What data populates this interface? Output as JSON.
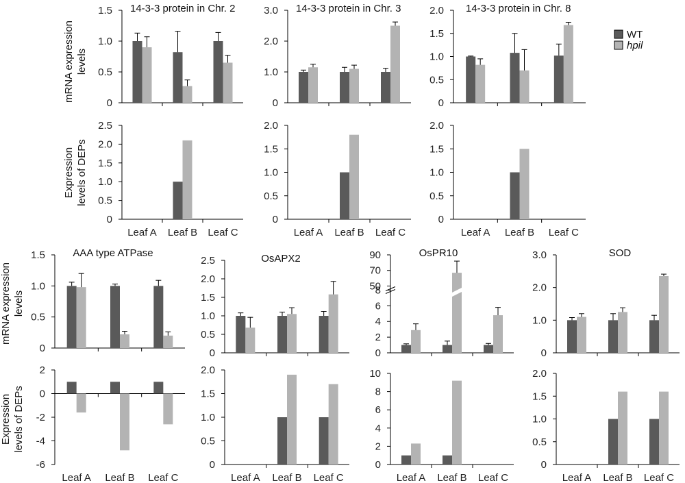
{
  "colors": {
    "WT": "#5a5a5a",
    "hpil": "#b3b3b3",
    "axis": "#000000"
  },
  "legend": {
    "items": [
      {
        "key": "WT",
        "label": "WT"
      },
      {
        "key": "hpil",
        "label": "hpil"
      }
    ]
  },
  "ylabels": {
    "mrna": [
      "mRNA expression",
      "levels"
    ],
    "deps": [
      "Expression",
      "levels of DEPs"
    ]
  },
  "chart_data": [
    {
      "id": "p1",
      "type": "bar",
      "title": "14-3-3 protein in Chr. 2",
      "categories": [
        "Leaf A",
        "Leaf B",
        "Leaf C"
      ],
      "show_categories": false,
      "ylim": [
        0,
        1.5
      ],
      "yticks": [
        0,
        0.5,
        1.0,
        1.5
      ],
      "ytick_labels": [
        "0",
        "0.5",
        "1.0",
        "1.5"
      ],
      "series": [
        {
          "name": "WT",
          "values": [
            1.0,
            0.82,
            1.0
          ],
          "errors": [
            0.13,
            0.34,
            0.14
          ]
        },
        {
          "name": "hpil",
          "values": [
            0.9,
            0.27,
            0.65
          ],
          "errors": [
            0.17,
            0.1,
            0.12
          ]
        }
      ]
    },
    {
      "id": "p2",
      "type": "bar",
      "title": "14-3-3 protein in Chr. 3",
      "categories": [
        "Leaf A",
        "Leaf B",
        "Leaf C"
      ],
      "show_categories": false,
      "ylim": [
        0,
        3.0
      ],
      "yticks": [
        0,
        1.0,
        2.0,
        3.0
      ],
      "ytick_labels": [
        "0",
        "1.0",
        "2.0",
        "3.0"
      ],
      "series": [
        {
          "name": "WT",
          "values": [
            1.0,
            1.0,
            1.0
          ],
          "errors": [
            0.06,
            0.15,
            0.12
          ]
        },
        {
          "name": "hpil",
          "values": [
            1.15,
            1.1,
            2.5
          ],
          "errors": [
            0.1,
            0.12,
            0.12
          ]
        }
      ]
    },
    {
      "id": "p3",
      "type": "bar",
      "title": "14-3-3 protein in Chr. 8",
      "categories": [
        "Leaf A",
        "Leaf B",
        "Leaf C"
      ],
      "show_categories": false,
      "ylim": [
        0,
        2.0
      ],
      "yticks": [
        0,
        0.5,
        1.0,
        1.5,
        2.0
      ],
      "ytick_labels": [
        "0",
        "0.5",
        "1.0",
        "1.5",
        "2.0"
      ],
      "series": [
        {
          "name": "WT",
          "values": [
            1.0,
            1.08,
            1.02
          ],
          "errors": [
            0.01,
            0.42,
            0.25
          ]
        },
        {
          "name": "hpil",
          "values": [
            0.82,
            0.7,
            1.68
          ],
          "errors": [
            0.13,
            0.45,
            0.06
          ]
        }
      ]
    },
    {
      "id": "p4",
      "type": "bar",
      "title": "",
      "categories": [
        "Leaf A",
        "Leaf B",
        "Leaf C"
      ],
      "show_categories": true,
      "ylim": [
        0,
        2.5
      ],
      "yticks": [
        0,
        0.5,
        1.0,
        1.5,
        2.0,
        2.5
      ],
      "ytick_labels": [
        "0",
        "0.5",
        "1.0",
        "1.5",
        "2.0",
        "2.5"
      ],
      "series": [
        {
          "name": "WT",
          "values": [
            null,
            1.0,
            null
          ]
        },
        {
          "name": "hpil",
          "values": [
            null,
            2.1,
            null
          ]
        }
      ]
    },
    {
      "id": "p5",
      "type": "bar",
      "title": "",
      "categories": [
        "Leaf A",
        "Leaf B",
        "Leaf C"
      ],
      "show_categories": true,
      "ylim": [
        0,
        2.0
      ],
      "yticks": [
        0,
        0.5,
        1.0,
        1.5,
        2.0
      ],
      "ytick_labels": [
        "0",
        "0.5",
        "1.0",
        "1.5",
        "2.0"
      ],
      "series": [
        {
          "name": "WT",
          "values": [
            null,
            1.0,
            null
          ]
        },
        {
          "name": "hpil",
          "values": [
            null,
            1.8,
            null
          ]
        }
      ]
    },
    {
      "id": "p6",
      "type": "bar",
      "title": "",
      "categories": [
        "Leaf A",
        "Leaf B",
        "Leaf C"
      ],
      "show_categories": true,
      "ylim": [
        0,
        2.0
      ],
      "yticks": [
        0,
        0.5,
        1.0,
        1.5,
        2.0
      ],
      "ytick_labels": [
        "0",
        "0.5",
        "1.0",
        "1.5",
        "2.0"
      ],
      "series": [
        {
          "name": "WT",
          "values": [
            null,
            1.0,
            null
          ]
        },
        {
          "name": "hpil",
          "values": [
            null,
            1.5,
            null
          ]
        }
      ]
    },
    {
      "id": "p7",
      "type": "bar",
      "title": "AAA type ATPase",
      "categories": [
        "Leaf A",
        "Leaf B",
        "Leaf C"
      ],
      "show_categories": false,
      "ylim": [
        0,
        1.5
      ],
      "yticks": [
        0,
        0.5,
        1.0,
        1.5
      ],
      "ytick_labels": [
        "0",
        "0.5",
        "1.0",
        "1.5"
      ],
      "series": [
        {
          "name": "WT",
          "values": [
            1.0,
            1.0,
            1.0
          ],
          "errors": [
            0.06,
            0.03,
            0.09
          ]
        },
        {
          "name": "hpil",
          "values": [
            0.98,
            0.22,
            0.2
          ],
          "errors": [
            0.22,
            0.05,
            0.06
          ]
        }
      ]
    },
    {
      "id": "p8",
      "type": "bar",
      "title": "OsAPX2",
      "categories": [
        "Leaf A",
        "Leaf B",
        "Leaf C"
      ],
      "show_categories": false,
      "ylim": [
        0,
        2.5
      ],
      "yticks": [
        0,
        0.5,
        1.0,
        1.5,
        2.0,
        2.5
      ],
      "ytick_labels": [
        "0",
        "0.5",
        "1.0",
        "1.5",
        "2.0",
        "2.5"
      ],
      "series": [
        {
          "name": "WT",
          "values": [
            1.0,
            1.0,
            1.0
          ],
          "errors": [
            0.08,
            0.1,
            0.12
          ]
        },
        {
          "name": "hpil",
          "values": [
            0.68,
            1.05,
            1.58
          ],
          "errors": [
            0.28,
            0.17,
            0.35
          ]
        }
      ]
    },
    {
      "id": "p9",
      "type": "bar",
      "title": "OsPR10",
      "categories": [
        "Leaf A",
        "Leaf B",
        "Leaf C"
      ],
      "show_categories": false,
      "broken_axis": true,
      "ylim": [
        0,
        90
      ],
      "yticks": [
        0,
        2,
        4,
        6,
        8,
        50,
        70,
        90
      ],
      "ytick_labels": [
        "0",
        "2",
        "4",
        "6",
        "8",
        "50",
        "70",
        "90"
      ],
      "series": [
        {
          "name": "WT",
          "values": [
            1.0,
            1.0,
            1.0
          ],
          "errors": [
            0.15,
            0.5,
            0.2
          ]
        },
        {
          "name": "hpil",
          "values": [
            2.9,
            67,
            4.8
          ],
          "errors": [
            0.8,
            15,
            1.0
          ]
        }
      ]
    },
    {
      "id": "p10",
      "type": "bar",
      "title": "SOD",
      "categories": [
        "Leaf A",
        "Leaf B",
        "Leaf C"
      ],
      "show_categories": false,
      "ylim": [
        0,
        3.0
      ],
      "yticks": [
        0,
        1.0,
        2.0,
        3.0
      ],
      "ytick_labels": [
        "0",
        "1.0",
        "2.0",
        "3.0"
      ],
      "series": [
        {
          "name": "WT",
          "values": [
            1.0,
            1.0,
            1.0
          ],
          "errors": [
            0.08,
            0.2,
            0.15
          ]
        },
        {
          "name": "hpil",
          "values": [
            1.1,
            1.25,
            2.35
          ],
          "errors": [
            0.1,
            0.13,
            0.06
          ]
        }
      ]
    },
    {
      "id": "p11",
      "type": "bar",
      "title": "",
      "categories": [
        "Leaf A",
        "Leaf B",
        "Leaf C"
      ],
      "show_categories": true,
      "ylim": [
        -6,
        2
      ],
      "yticks": [
        -6,
        -4,
        -2,
        0,
        2
      ],
      "ytick_labels": [
        "-6",
        "-4",
        "-2",
        "0",
        "2"
      ],
      "series": [
        {
          "name": "WT",
          "values": [
            1.0,
            1.0,
            1.0
          ]
        },
        {
          "name": "hpil",
          "values": [
            -1.6,
            -4.8,
            -2.6
          ]
        }
      ]
    },
    {
      "id": "p12",
      "type": "bar",
      "title": "",
      "categories": [
        "Leaf A",
        "Leaf B",
        "Leaf C"
      ],
      "show_categories": true,
      "ylim": [
        0,
        2.0
      ],
      "yticks": [
        0,
        0.5,
        1.0,
        1.5,
        2.0
      ],
      "ytick_labels": [
        "0",
        "0.5",
        "1.0",
        "1.5",
        "2.0"
      ],
      "series": [
        {
          "name": "WT",
          "values": [
            null,
            1.0,
            1.0
          ]
        },
        {
          "name": "hpil",
          "values": [
            null,
            1.9,
            1.7
          ]
        }
      ]
    },
    {
      "id": "p13",
      "type": "bar",
      "title": "",
      "categories": [
        "Leaf A",
        "Leaf B",
        "Leaf C"
      ],
      "show_categories": true,
      "ylim": [
        0,
        10
      ],
      "yticks": [
        0,
        2,
        4,
        6,
        8,
        10
      ],
      "ytick_labels": [
        "0",
        "2",
        "4",
        "6",
        "8",
        "10"
      ],
      "series": [
        {
          "name": "WT",
          "values": [
            1.0,
            1.0,
            null
          ]
        },
        {
          "name": "hpil",
          "values": [
            2.3,
            9.2,
            null
          ]
        }
      ]
    },
    {
      "id": "p14",
      "type": "bar",
      "title": "",
      "categories": [
        "Leaf A",
        "Leaf B",
        "Leaf C"
      ],
      "show_categories": true,
      "ylim": [
        0,
        2.0
      ],
      "yticks": [
        0,
        0.5,
        1.0,
        1.5,
        2.0
      ],
      "ytick_labels": [
        "0",
        "0.5",
        "1.0",
        "1.5",
        "2.0"
      ],
      "series": [
        {
          "name": "WT",
          "values": [
            null,
            1.0,
            1.0
          ]
        },
        {
          "name": "hpil",
          "values": [
            null,
            1.6,
            1.6
          ]
        }
      ]
    }
  ]
}
